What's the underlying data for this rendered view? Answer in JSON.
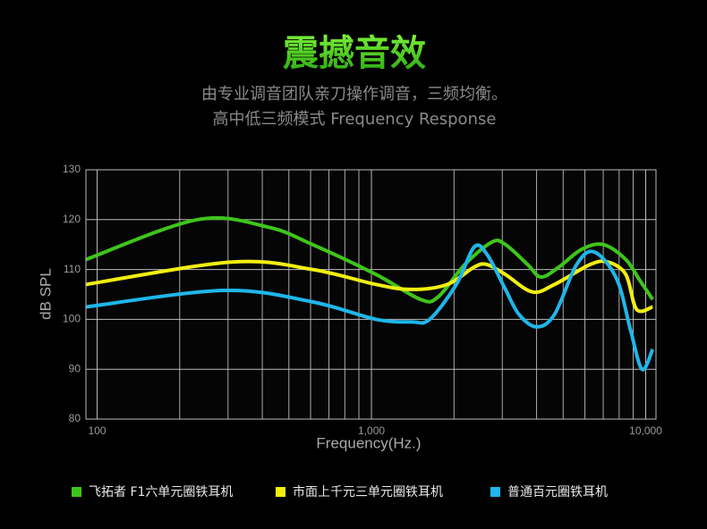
{
  "chart_data": {
    "type": "line",
    "title": "震撼音效",
    "subtitle": "由专业调音团队亲刀操作调音，三频均衡。",
    "subtitle2": "高中低三频模式  Frequency Response",
    "xlabel": "Frequency(Hz.)",
    "ylabel": "dB SPL",
    "xscale": "log",
    "xlim": [
      91,
      10900
    ],
    "ylim": [
      80,
      130
    ],
    "xticks": [
      100,
      {
        "value": 1000,
        "label": "1,000"
      },
      {
        "value": 10000,
        "label": "10,000"
      }
    ],
    "x_minor_grid": [
      200,
      300,
      400,
      500,
      600,
      700,
      800,
      900,
      2000,
      3000,
      4000,
      5000,
      6000,
      7000,
      8000,
      9000
    ],
    "yticks": [
      80,
      90,
      100,
      110,
      120,
      130
    ],
    "grid": true,
    "legend": "bottom",
    "series": [
      {
        "name": "飞拓者 F1六单元圈铁耳机",
        "color": "#3ec51b",
        "x": [
          91,
          232,
          420,
          610,
          1040,
          1510,
          1750,
          2190,
          2750,
          3080,
          3710,
          4150,
          4830,
          5820,
          7000,
          8460,
          9470,
          10600
        ],
        "values": [
          112,
          120,
          118.5,
          115,
          109,
          104,
          104.5,
          111,
          115.5,
          115,
          111,
          108.5,
          110.5,
          114,
          115,
          112,
          108,
          104
        ]
      },
      {
        "name": "市面上千元三单元圈铁耳机",
        "color": "#f2ee12",
        "x": [
          91,
          310,
          610,
          1040,
          1400,
          1890,
          2370,
          2640,
          3080,
          3860,
          4650,
          6270,
          7280,
          8460,
          9260,
          10600
        ],
        "values": [
          107,
          111.5,
          110,
          107,
          106,
          107,
          110.5,
          111,
          109,
          105.5,
          107,
          111,
          111.5,
          109,
          102,
          102.5
        ]
      },
      {
        "name": "普通百元圈铁耳机",
        "color": "#1fb6ea",
        "x": [
          91,
          290,
          610,
          1040,
          1400,
          1630,
          2040,
          2370,
          2640,
          3080,
          3450,
          4000,
          4650,
          5600,
          6510,
          7850,
          8790,
          9690,
          10600
        ],
        "values": [
          102.5,
          105.8,
          103.5,
          100,
          99.5,
          100,
          107,
          114.5,
          113,
          106,
          101,
          98.5,
          101,
          111,
          113.5,
          108,
          98,
          90,
          94
        ]
      }
    ]
  }
}
